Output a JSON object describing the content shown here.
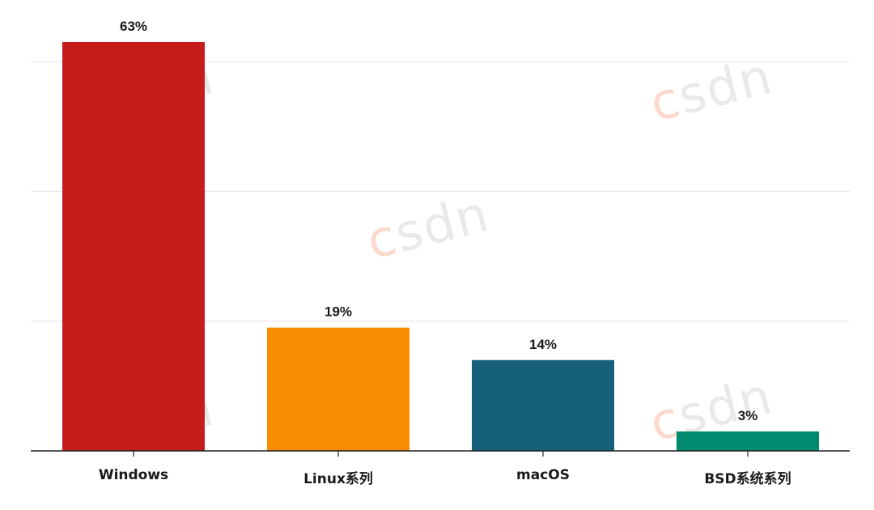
{
  "chart_data": {
    "type": "bar",
    "categories": [
      "Windows",
      "Linux系列",
      "macOS",
      "BSD系统系列"
    ],
    "values": [
      63,
      19,
      14,
      3
    ],
    "data_labels": [
      "63%",
      "19%",
      "14%",
      "3%"
    ],
    "colors": [
      "#c61c1c",
      "#f98b00",
      "#17607b",
      "#008a6e"
    ],
    "ylim": [
      0,
      60
    ],
    "grid": true,
    "gridlines": [
      20,
      40,
      60
    ],
    "title": "",
    "xlabel": "",
    "ylabel": ""
  },
  "watermark": {
    "text": "CSDN",
    "color": "#fbd9cc"
  }
}
